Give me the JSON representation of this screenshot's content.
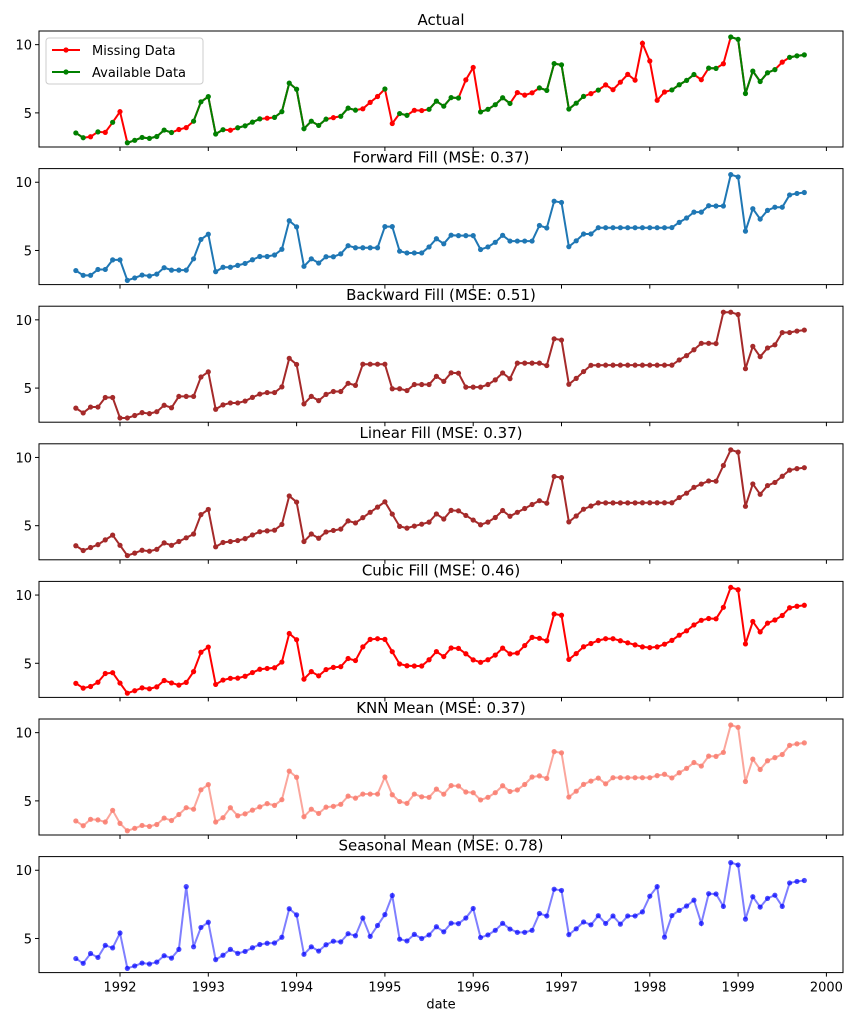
{
  "chart_data": [
    {
      "type": "line",
      "title": "Actual",
      "xlabel": "",
      "ylabel": "",
      "x_dates": {
        "start": "1991-07-01",
        "end": "1999-10-01",
        "frequency": "monthly"
      },
      "xlim": [
        "1991-03-01",
        "2000-01-01"
      ],
      "ylim": [
        2.5,
        11.0
      ],
      "xticks": [
        "1992",
        "1993",
        "1994",
        "1995",
        "1996",
        "1997",
        "1998",
        "1999",
        "2000"
      ],
      "yticks": [
        5,
        10
      ],
      "grid": false,
      "legend": {
        "placement": "top-left",
        "entries": [
          "Missing Data",
          "Available Data"
        ]
      },
      "colors": {
        "missing": "#ff0000",
        "available": "#008000"
      },
      "values": [
        3.53,
        3.18,
        3.25,
        3.61,
        3.57,
        4.31,
        5.09,
        2.81,
        2.99,
        3.2,
        3.13,
        3.27,
        3.74,
        3.56,
        3.78,
        3.92,
        4.39,
        5.81,
        6.19,
        3.45,
        3.77,
        3.73,
        3.91,
        4.05,
        4.32,
        4.56,
        4.61,
        4.67,
        5.09,
        7.18,
        6.73,
        3.84,
        4.39,
        4.08,
        4.54,
        4.65,
        4.75,
        5.35,
        5.2,
        5.3,
        5.77,
        6.2,
        6.75,
        4.22,
        4.95,
        4.82,
        5.19,
        5.17,
        5.26,
        5.86,
        5.49,
        6.12,
        6.09,
        7.42,
        8.33,
        5.07,
        5.26,
        5.6,
        6.11,
        5.69,
        6.49,
        6.3,
        6.47,
        6.83,
        6.65,
        8.61,
        8.52,
        5.28,
        5.71,
        6.21,
        6.41,
        6.67,
        7.05,
        6.7,
        7.25,
        7.82,
        7.4,
        10.1,
        8.8,
        5.92,
        6.53,
        6.68,
        7.06,
        7.38,
        7.81,
        7.43,
        8.28,
        8.26,
        8.6,
        10.56,
        10.39,
        6.42,
        8.06,
        7.3,
        7.94,
        8.17,
        8.72,
        9.07,
        9.18,
        9.25
      ],
      "missing_indices": [
        2,
        4,
        6,
        14,
        15,
        21,
        26,
        35,
        39,
        40,
        41,
        43,
        46,
        47,
        53,
        54,
        60,
        61,
        62,
        70,
        72,
        73,
        74,
        75,
        76,
        77,
        78,
        79,
        80,
        85,
        88,
        96
      ]
    },
    {
      "type": "line",
      "title": "Forward Fill (MSE: 0.37)",
      "color": "#1f77b4",
      "line_opacity": 1,
      "imputed_values": [
        3.18,
        3.61,
        4.31,
        3.56,
        3.56,
        3.77,
        4.56,
        4.54,
        5.2,
        5.2,
        5.2,
        6.75,
        4.82,
        4.82,
        6.09,
        6.09,
        5.69,
        5.69,
        5.69,
        6.21,
        6.67,
        6.67,
        6.67,
        6.67,
        6.67,
        6.67,
        6.67,
        6.67,
        6.67,
        7.81,
        8.26,
        8.17
      ]
    },
    {
      "type": "line",
      "title": "Backward Fill (MSE: 0.51)",
      "color": "#a52a2a",
      "line_opacity": 1,
      "imputed_values": [
        3.61,
        4.31,
        2.81,
        4.39,
        4.39,
        3.91,
        4.67,
        4.75,
        6.75,
        6.75,
        6.75,
        4.95,
        5.26,
        5.26,
        5.07,
        5.07,
        6.83,
        6.83,
        6.83,
        6.67,
        6.68,
        6.68,
        6.68,
        6.68,
        6.68,
        6.68,
        6.68,
        6.68,
        6.68,
        8.28,
        10.56,
        9.07
      ]
    },
    {
      "type": "line",
      "title": "Linear Fill (MSE: 0.37)",
      "color": "#a52a2a",
      "line_opacity": 1,
      "imputed_values": [
        3.4,
        3.96,
        3.56,
        3.84,
        4.11,
        3.84,
        4.62,
        4.65,
        5.59,
        5.98,
        6.36,
        5.85,
        4.97,
        5.11,
        5.75,
        5.41,
        5.98,
        6.26,
        6.55,
        6.44,
        6.67,
        6.67,
        6.67,
        6.67,
        6.67,
        6.68,
        6.68,
        6.68,
        6.68,
        8.05,
        9.41,
        8.62
      ]
    },
    {
      "type": "line",
      "title": "Cubic Fill (MSE: 0.46)",
      "color": "#ff0000",
      "line_opacity": 1,
      "imputed_values": [
        3.3,
        4.25,
        3.55,
        3.4,
        3.6,
        3.9,
        4.62,
        4.7,
        6.2,
        6.75,
        6.8,
        5.85,
        4.8,
        4.8,
        5.7,
        5.25,
        5.75,
        6.3,
        6.9,
        6.45,
        6.8,
        6.8,
        6.65,
        6.5,
        6.35,
        6.2,
        6.15,
        6.2,
        6.4,
        8.15,
        9.1,
        8.5
      ]
    },
    {
      "type": "line",
      "title": "KNN Mean (MSE: 0.37)",
      "color": "#fa8072",
      "line_opacity": 0.7,
      "imputed_values": [
        3.65,
        3.45,
        3.35,
        4.0,
        4.5,
        4.5,
        4.8,
        4.6,
        5.5,
        5.5,
        5.5,
        5.45,
        5.5,
        5.3,
        5.65,
        5.6,
        5.8,
        6.2,
        6.75,
        6.45,
        6.25,
        6.7,
        6.7,
        6.7,
        6.7,
        6.7,
        6.7,
        6.85,
        6.95,
        7.55,
        8.55,
        8.4
      ]
    },
    {
      "type": "line",
      "title": "Seasonal Mean (MSE: 0.78)",
      "color": "#0000ff",
      "line_opacity": 0.5,
      "xlabel": "date",
      "imputed_values": [
        3.9,
        4.5,
        5.4,
        4.2,
        8.8,
        4.2,
        4.65,
        4.8,
        6.5,
        5.15,
        5.95,
        8.15,
        5.3,
        5.0,
        6.5,
        7.2,
        5.45,
        5.45,
        5.6,
        6.0,
        6.1,
        6.65,
        6.05,
        6.65,
        6.65,
        6.95,
        8.1,
        8.8,
        5.1,
        6.1,
        7.35,
        7.35
      ]
    }
  ]
}
